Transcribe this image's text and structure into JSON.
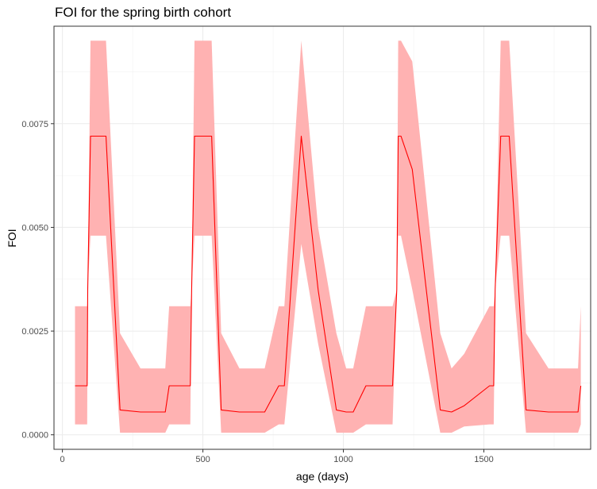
{
  "chart_data": {
    "type": "line",
    "title": "FOI for the spring birth cohort",
    "xlabel": "age (days)",
    "ylabel": "FOI",
    "xlim": [
      -30,
      1880
    ],
    "ylim": [
      -0.00035,
      0.00985
    ],
    "x_ticks": [
      0,
      500,
      1000,
      1500
    ],
    "x_tick_labels": [
      "0",
      "500",
      "1000",
      "1500"
    ],
    "y_ticks": [
      0.0,
      0.0025,
      0.005,
      0.0075
    ],
    "y_tick_labels": [
      "0.0000",
      "0.0025",
      "0.0050",
      "0.0075"
    ],
    "grid": true,
    "line_color": "#ff0000",
    "ribbon_color": "#ffb2b2",
    "series": [
      {
        "x": [
          45,
          88,
          90,
          100,
          155,
          205,
          278,
          366,
          380,
          385,
          455,
          460,
          470,
          531,
          565,
          630,
          720,
          770,
          790,
          850,
          910,
          975,
          1010,
          1035,
          1080,
          1175,
          1190,
          1195,
          1205,
          1245,
          1345,
          1385,
          1430,
          1520,
          1535,
          1540,
          1560,
          1590,
          1650,
          1730,
          1835,
          1845
        ],
        "y": [
          0.00118,
          0.00118,
          0.0035,
          0.0072,
          0.0072,
          0.0006,
          0.00055,
          0.00055,
          0.00118,
          0.00118,
          0.00118,
          0.0035,
          0.0072,
          0.0072,
          0.0006,
          0.00055,
          0.00055,
          0.00118,
          0.00118,
          0.0072,
          0.0035,
          0.0006,
          0.00055,
          0.00055,
          0.00118,
          0.00118,
          0.0035,
          0.0072,
          0.0072,
          0.0064,
          0.0006,
          0.00055,
          0.0007,
          0.00118,
          0.00118,
          0.0035,
          0.0072,
          0.0072,
          0.0006,
          0.00055,
          0.00055,
          0.00118
        ],
        "lower": [
          0.00025,
          0.00025,
          0.0035,
          0.0048,
          0.0048,
          5e-05,
          5e-05,
          5e-05,
          0.00025,
          0.00025,
          0.00025,
          0.0035,
          0.0048,
          0.0048,
          5e-05,
          5e-05,
          5e-05,
          0.00025,
          0.00025,
          0.0046,
          0.0022,
          5e-05,
          5e-05,
          5e-05,
          0.00025,
          0.00025,
          0.0035,
          0.0048,
          0.0048,
          0.0035,
          5e-05,
          5e-05,
          0.0002,
          0.00025,
          0.00025,
          0.0035,
          0.0048,
          0.0048,
          5e-05,
          5e-05,
          5e-05,
          0.00025
        ],
        "upper": [
          0.0031,
          0.0031,
          0.0035,
          0.0095,
          0.0095,
          0.00245,
          0.0016,
          0.0016,
          0.0031,
          0.0031,
          0.0031,
          0.0035,
          0.0095,
          0.0095,
          0.00245,
          0.0016,
          0.0016,
          0.0031,
          0.0031,
          0.0095,
          0.005,
          0.00245,
          0.0016,
          0.0016,
          0.0031,
          0.0031,
          0.0035,
          0.0095,
          0.0095,
          0.009,
          0.00245,
          0.0016,
          0.00195,
          0.0031,
          0.0031,
          0.0035,
          0.0095,
          0.0095,
          0.00245,
          0.0016,
          0.0016,
          0.0031
        ]
      }
    ]
  }
}
